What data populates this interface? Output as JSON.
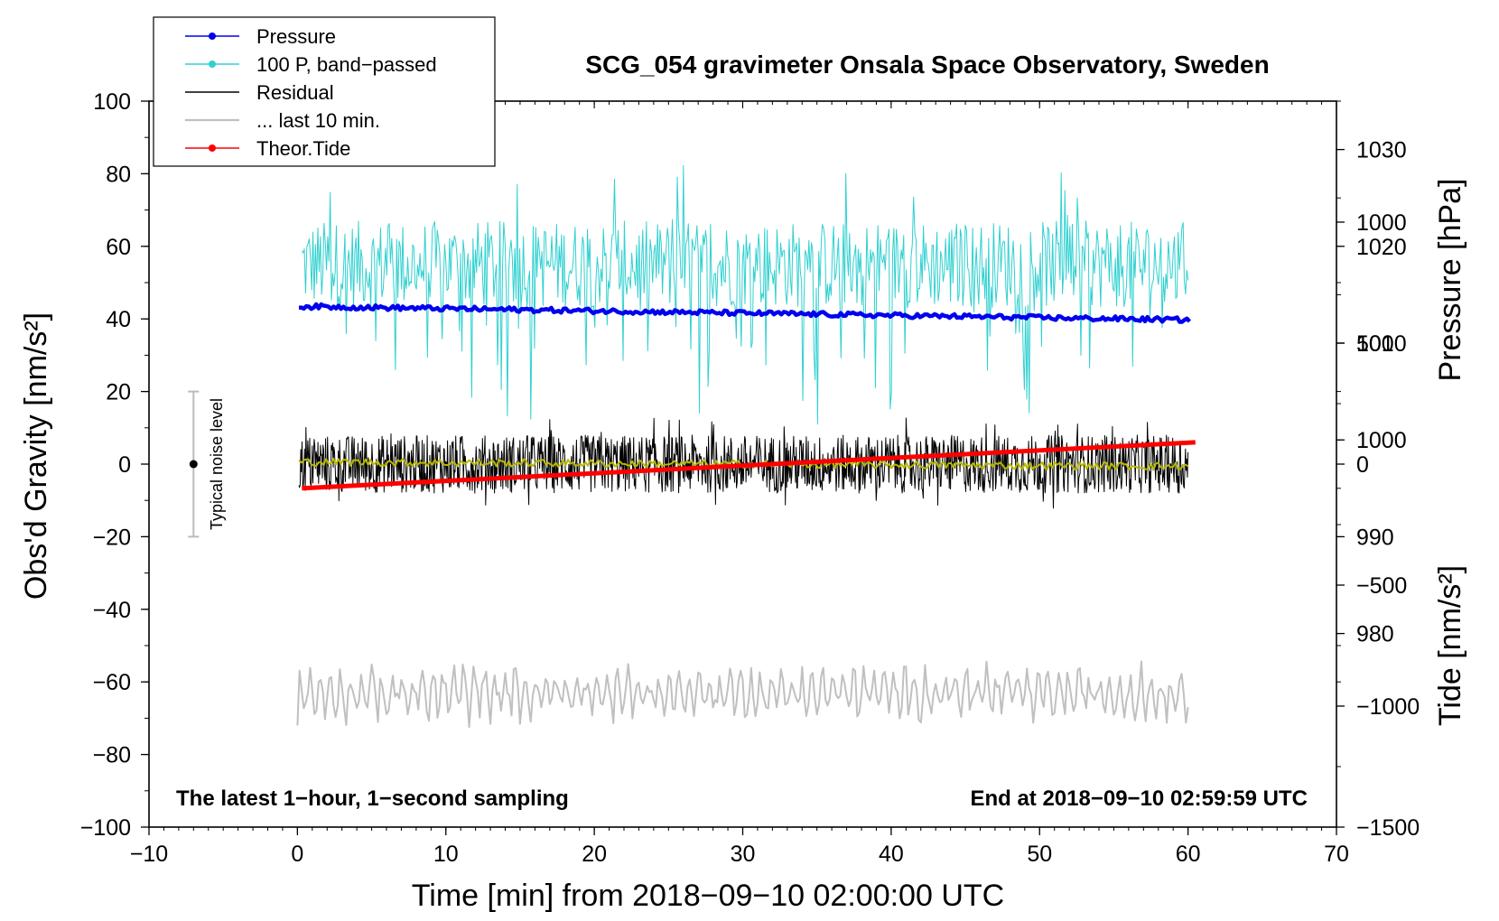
{
  "chart_data": {
    "type": "line",
    "title": "SCG_054 gravimeter Onsala Space Observatory, Sweden",
    "xlabel": "Time [min] from 2018−09−10 02:00:00 UTC",
    "ylabel_left": "Obs'd Gravity [nm/s²]",
    "ylabel_right_top": "Pressure [hPa]",
    "ylabel_right_bottom": "Tide [nm/s²]",
    "xlim": [
      -10,
      70
    ],
    "ylim_left": [
      -100,
      100
    ],
    "ylim_pressure": [
      960,
      1035
    ],
    "ylim_tide": [
      -1500,
      1500
    ],
    "x_ticks": [
      "−10",
      "0",
      "10",
      "20",
      "30",
      "40",
      "50",
      "60",
      "70"
    ],
    "y_ticks_left": [
      "−100",
      "−80",
      "−60",
      "−40",
      "−20",
      "0",
      "20",
      "40",
      "60",
      "80",
      "100"
    ],
    "y_ticks_pressure": [
      "980",
      "990",
      "1000",
      "1010",
      "1020",
      "1030"
    ],
    "y_ticks_tide": [
      "−1500",
      "−1000",
      "−500",
      "0",
      "500",
      "1000"
    ],
    "legend": [
      {
        "label": "Pressure",
        "color": "#0000ee",
        "marker": true
      },
      {
        "label": "100 P, band−passed",
        "color": "#30d0d0",
        "marker": true
      },
      {
        "label": "Residual",
        "color": "#000000",
        "marker": false
      },
      {
        "label": "... last 10 min.",
        "color": "#c0c0c0",
        "marker": false
      },
      {
        "label": "Theor.Tide",
        "color": "#ff0000",
        "marker": true
      }
    ],
    "series": [
      {
        "name": "Pressure",
        "axis": "pressure",
        "color": "#0000ee",
        "x": [
          0,
          10,
          20,
          30,
          40,
          50,
          60
        ],
        "values": [
          1013.8,
          1013.6,
          1013.4,
          1013.2,
          1012.9,
          1012.7,
          1012.4
        ]
      },
      {
        "name": "100 P, band−passed",
        "axis": "left",
        "color": "#30d0d0",
        "x_range": [
          0.3,
          60
        ],
        "mean": 55,
        "spread": 15
      },
      {
        "name": "Residual",
        "axis": "left",
        "color": "#000000",
        "x_range": [
          0.1,
          60
        ],
        "mean": 0,
        "spread": 8
      },
      {
        "name": "Residual smoothed",
        "axis": "left",
        "color": "#b8b800",
        "x_range": [
          0.1,
          60
        ],
        "mean": 0,
        "spread": 1.5
      },
      {
        "name": "... last 10 min.",
        "axis": "left",
        "color": "#c0c0c0",
        "x_range": [
          0,
          60
        ],
        "mean": -63,
        "spread": 6
      },
      {
        "name": "Theor.Tide",
        "axis": "tide",
        "color": "#ff0000",
        "x": [
          0.3,
          60.5
        ],
        "values": [
          -100,
          90
        ]
      }
    ],
    "noise_bar": {
      "x": -7,
      "center": 0,
      "low": -20,
      "high": 20,
      "label": "Typical noise level"
    },
    "annotations": {
      "bottom_left": "The latest 1−hour, 1−second sampling",
      "bottom_right": "End at 2018−09−10 02:59:59 UTC"
    }
  }
}
